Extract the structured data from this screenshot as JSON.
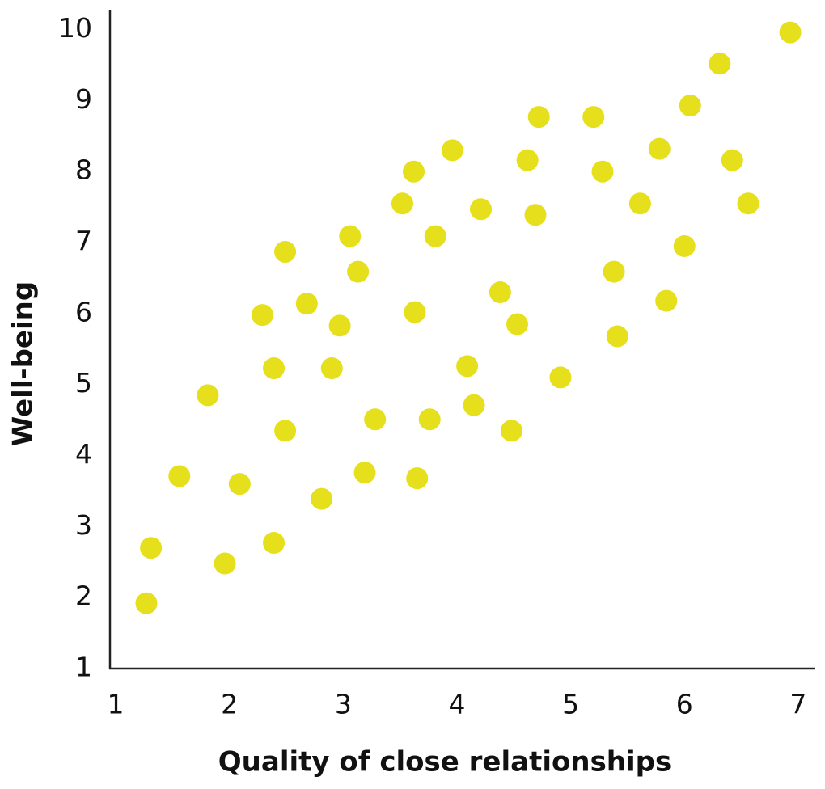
{
  "chart_data": {
    "type": "scatter",
    "xlabel": "Quality of close relationships",
    "ylabel": "Well-being",
    "color": "#e6df1b",
    "xlim": [
      0.95,
      7.15
    ],
    "ylim": [
      1,
      10.28
    ],
    "xticks": [
      1,
      2,
      3,
      4,
      5,
      6,
      7
    ],
    "yticks": [
      1,
      2,
      3,
      4,
      5,
      6,
      7,
      8,
      9,
      10
    ],
    "grid": false,
    "x": [
      6.93,
      6.31,
      6.05,
      4.72,
      5.2,
      5.78,
      3.96,
      4.62,
      6.42,
      3.62,
      5.28,
      3.52,
      5.61,
      6.56,
      4.21,
      4.69,
      3.06,
      3.81,
      6.0,
      2.49,
      3.13,
      5.38,
      4.38,
      2.68,
      5.84,
      2.29,
      3.63,
      2.97,
      4.53,
      5.41,
      2.39,
      2.9,
      4.09,
      4.91,
      1.81,
      4.15,
      3.28,
      3.76,
      2.49,
      4.48,
      1.56,
      3.19,
      3.65,
      2.09,
      2.81,
      1.31,
      2.39,
      1.96,
      1.27
    ],
    "values": [
      9.96,
      9.52,
      8.93,
      8.77,
      8.77,
      8.32,
      8.3,
      8.16,
      8.16,
      8.0,
      8.0,
      7.55,
      7.55,
      7.55,
      7.47,
      7.39,
      7.09,
      7.09,
      6.95,
      6.87,
      6.59,
      6.59,
      6.3,
      6.14,
      6.18,
      5.98,
      6.02,
      5.83,
      5.85,
      5.68,
      5.23,
      5.23,
      5.26,
      5.1,
      4.85,
      4.71,
      4.51,
      4.51,
      4.35,
      4.35,
      3.71,
      3.76,
      3.68,
      3.6,
      3.39,
      2.7,
      2.77,
      2.48,
      1.92
    ]
  }
}
